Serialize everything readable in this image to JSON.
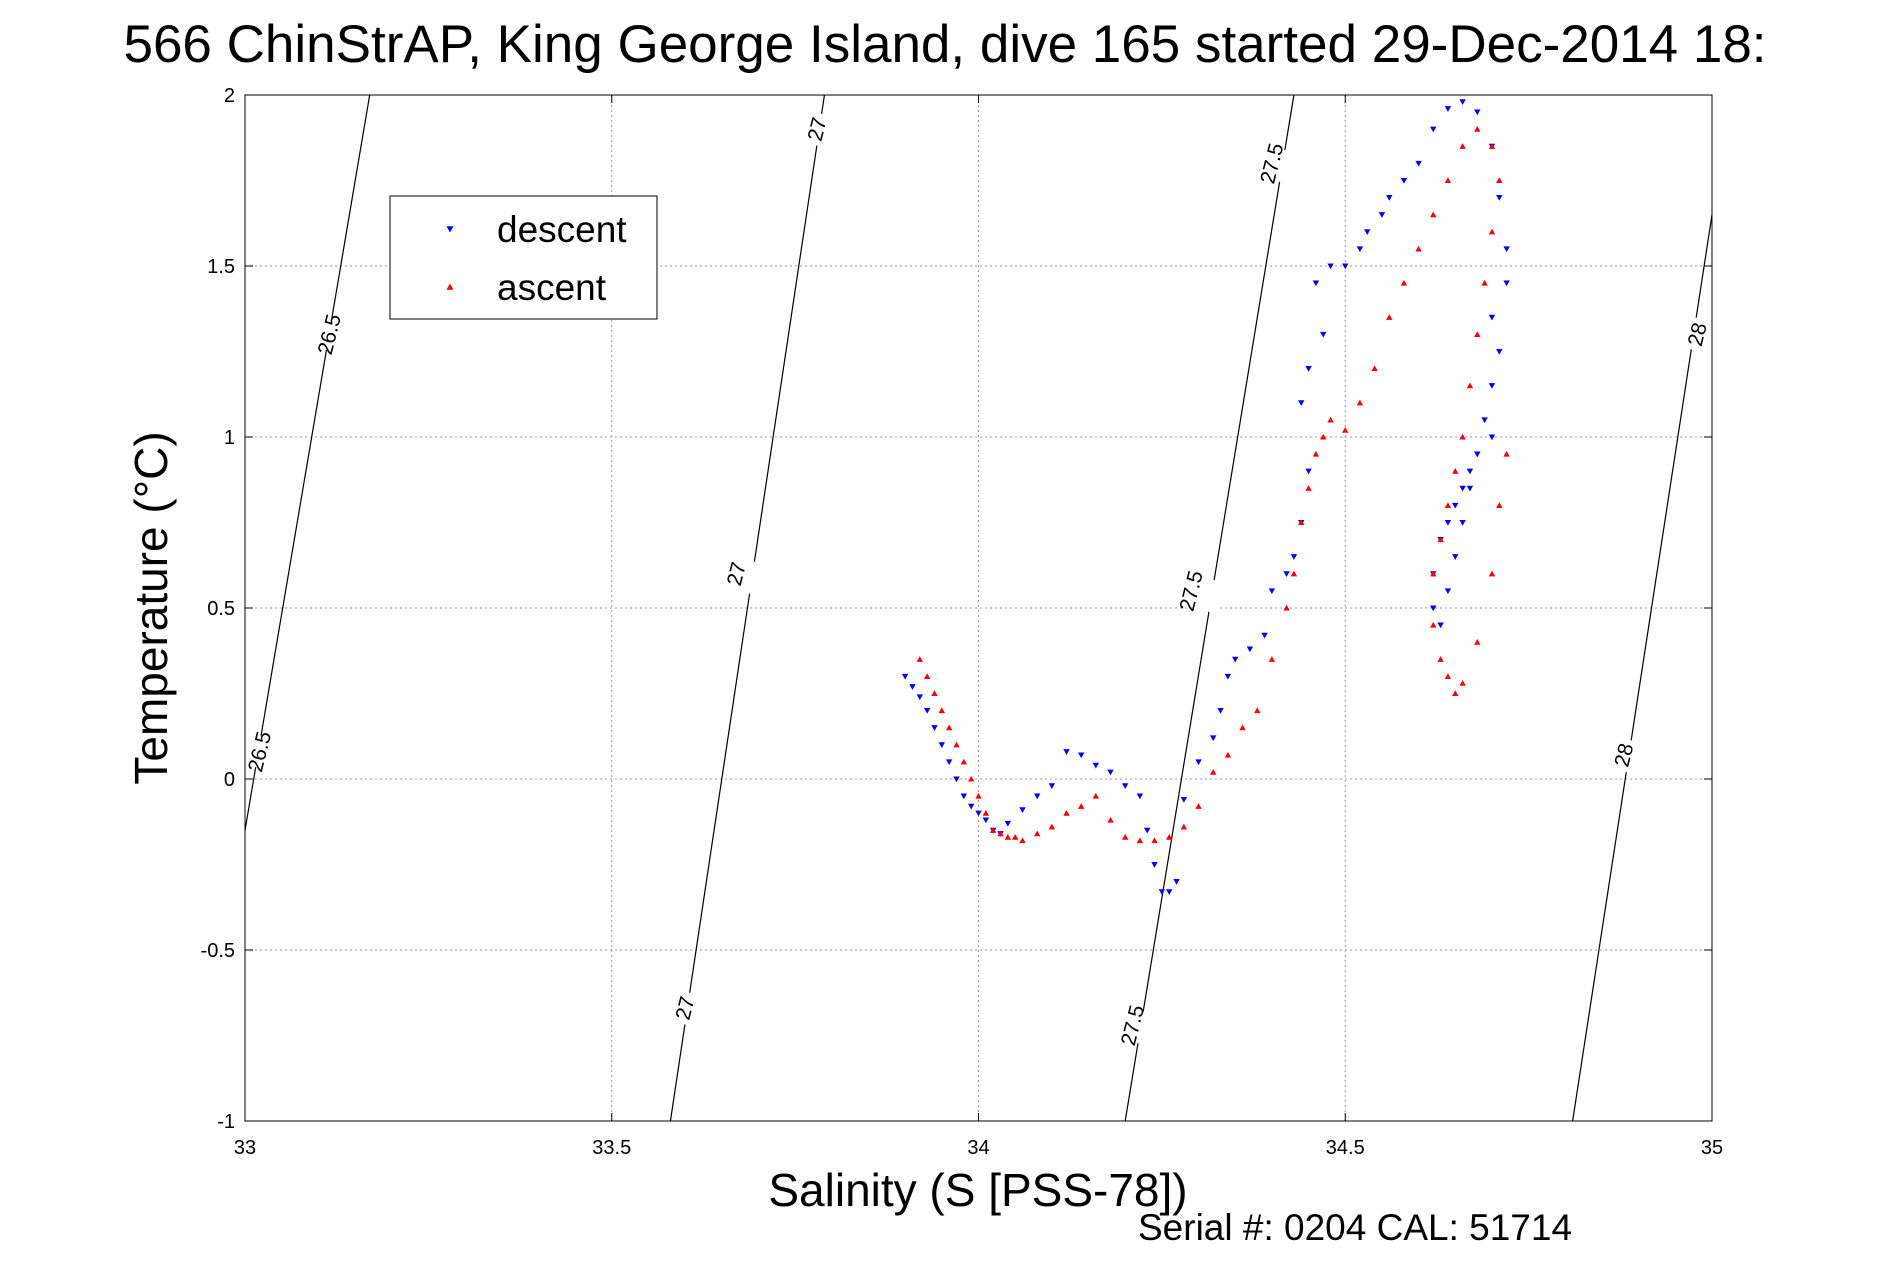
{
  "chart_data": {
    "type": "scatter",
    "title": "566 ChinStrAP, King George Island, dive 165 started 29-Dec-2014 18:",
    "xlabel": "Salinity (S [PSS-78])",
    "ylabel": "Temperature (°C)",
    "xlim": [
      33,
      35
    ],
    "ylim": [
      -1,
      2
    ],
    "xticks": [
      "33",
      "33.5",
      "34",
      "34.5",
      "35"
    ],
    "yticks": [
      "-1",
      "-0.5",
      "0",
      "0.5",
      "1",
      "1.5",
      "2"
    ],
    "grid": true,
    "legend_position": "upper-left",
    "footer": "Serial #: 0204  CAL: 51714",
    "density_contours": [
      {
        "label": "26.5",
        "points": [
          [
            33.0,
            -0.15
          ],
          [
            33.17,
            2.0
          ]
        ]
      },
      {
        "label": "27",
        "points": [
          [
            33.58,
            -1.0
          ],
          [
            33.79,
            2.0
          ]
        ]
      },
      {
        "label": "27.5",
        "points": [
          [
            34.2,
            -1.0
          ],
          [
            34.43,
            2.0
          ]
        ]
      },
      {
        "label": "28",
        "points": [
          [
            34.81,
            -1.0
          ],
          [
            35.0,
            1.65
          ]
        ]
      }
    ],
    "contour_labels": [
      {
        "text": "26.5",
        "x": 33.115,
        "y": 1.3
      },
      {
        "text": "26.5",
        "x": 33.02,
        "y": 0.08
      },
      {
        "text": "27",
        "x": 33.78,
        "y": 1.9
      },
      {
        "text": "27",
        "x": 33.67,
        "y": 0.6
      },
      {
        "text": "27",
        "x": 33.6,
        "y": -0.67
      },
      {
        "text": "27.5",
        "x": 34.4,
        "y": 1.8
      },
      {
        "text": "27.5",
        "x": 34.29,
        "y": 0.55
      },
      {
        "text": "27.5",
        "x": 34.21,
        "y": -0.72
      },
      {
        "text": "28",
        "x": 34.98,
        "y": 1.3
      },
      {
        "text": "28",
        "x": 34.88,
        "y": 0.07
      }
    ],
    "series": [
      {
        "name": "descent",
        "color": "#0000ff",
        "marker": "triangle-down",
        "x": [
          33.9,
          33.91,
          33.92,
          33.93,
          33.94,
          33.95,
          33.96,
          33.97,
          33.98,
          33.99,
          34.0,
          34.01,
          34.02,
          34.03,
          34.04,
          34.06,
          34.08,
          34.1,
          34.12,
          34.14,
          34.16,
          34.18,
          34.2,
          34.22,
          34.23,
          34.24,
          34.25,
          34.26,
          34.27,
          34.28,
          34.3,
          34.32,
          34.33,
          34.34,
          34.35,
          34.37,
          34.39,
          34.4,
          34.42,
          34.43,
          34.44,
          34.45,
          34.44,
          34.45,
          34.47,
          34.46,
          34.48,
          34.5,
          34.52,
          34.53,
          34.55,
          34.56,
          34.58,
          34.6,
          34.62,
          34.64,
          34.66,
          34.68,
          34.7,
          34.71,
          34.72,
          34.72,
          34.7,
          34.71,
          34.7,
          34.69,
          34.7,
          34.68,
          34.67,
          34.66,
          34.65,
          34.64,
          34.63,
          34.62,
          34.62,
          34.63,
          34.64,
          34.65,
          34.66,
          34.67,
          34.68
        ],
        "y": [
          0.3,
          0.27,
          0.24,
          0.2,
          0.15,
          0.1,
          0.05,
          0.0,
          -0.05,
          -0.08,
          -0.1,
          -0.12,
          -0.15,
          -0.16,
          -0.13,
          -0.09,
          -0.05,
          -0.02,
          0.08,
          0.07,
          0.04,
          0.02,
          -0.02,
          -0.05,
          -0.15,
          -0.25,
          -0.33,
          -0.33,
          -0.3,
          -0.06,
          0.05,
          0.12,
          0.2,
          0.3,
          0.35,
          0.38,
          0.42,
          0.55,
          0.6,
          0.65,
          0.75,
          0.9,
          1.1,
          1.2,
          1.3,
          1.45,
          1.5,
          1.5,
          1.55,
          1.6,
          1.65,
          1.7,
          1.75,
          1.8,
          1.9,
          1.96,
          1.98,
          1.95,
          1.85,
          1.7,
          1.55,
          1.45,
          1.35,
          1.25,
          1.15,
          1.05,
          1.0,
          0.95,
          0.9,
          0.85,
          0.8,
          0.75,
          0.7,
          0.6,
          0.5,
          0.45,
          0.55,
          0.65,
          0.75,
          0.85,
          0.95
        ]
      },
      {
        "name": "ascent",
        "color": "#ff0000",
        "marker": "triangle-up",
        "x": [
          33.92,
          33.93,
          33.94,
          33.95,
          33.96,
          33.97,
          33.98,
          33.99,
          34.0,
          34.01,
          34.02,
          34.03,
          34.04,
          34.05,
          34.06,
          34.08,
          34.1,
          34.12,
          34.14,
          34.16,
          34.18,
          34.2,
          34.22,
          34.24,
          34.26,
          34.28,
          34.3,
          34.32,
          34.34,
          34.36,
          34.38,
          34.4,
          34.42,
          34.43,
          34.44,
          34.45,
          34.46,
          34.47,
          34.48,
          34.5,
          34.52,
          34.54,
          34.56,
          34.58,
          34.6,
          34.62,
          34.64,
          34.66,
          34.68,
          34.7,
          34.71,
          34.7,
          34.69,
          34.68,
          34.67,
          34.66,
          34.65,
          34.64,
          34.63,
          34.62,
          34.62,
          34.63,
          34.64,
          34.65,
          34.66,
          34.68,
          34.7,
          34.71,
          34.72
        ],
        "y": [
          0.35,
          0.3,
          0.25,
          0.2,
          0.15,
          0.1,
          0.05,
          0.0,
          -0.05,
          -0.1,
          -0.15,
          -0.16,
          -0.17,
          -0.17,
          -0.18,
          -0.16,
          -0.14,
          -0.1,
          -0.08,
          -0.05,
          -0.12,
          -0.17,
          -0.18,
          -0.18,
          -0.17,
          -0.14,
          -0.08,
          0.02,
          0.07,
          0.15,
          0.2,
          0.35,
          0.5,
          0.6,
          0.75,
          0.85,
          0.95,
          1.0,
          1.05,
          1.02,
          1.1,
          1.2,
          1.35,
          1.45,
          1.55,
          1.65,
          1.75,
          1.85,
          1.9,
          1.85,
          1.75,
          1.6,
          1.45,
          1.3,
          1.15,
          1.0,
          0.9,
          0.8,
          0.7,
          0.6,
          0.45,
          0.35,
          0.3,
          0.25,
          0.28,
          0.4,
          0.6,
          0.8,
          0.95
        ]
      }
    ]
  }
}
